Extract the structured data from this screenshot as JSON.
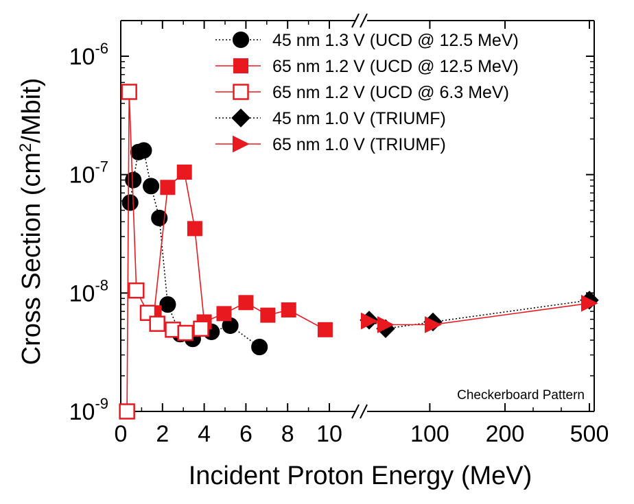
{
  "chart_data": {
    "type": "scatter",
    "xlabel": "Incident Proton Energy (MeV)",
    "ylabel": "Cross Section (cm2/Mbit)",
    "ylabel_parts": {
      "pre": "Cross Section (cm",
      "sup": "2",
      "post": "/Mbit)"
    },
    "y_scale": "log",
    "ylim": [
      1e-09,
      2e-06
    ],
    "y_ticks": [
      {
        "value": 1e-06,
        "base": "10",
        "exp": "-6"
      },
      {
        "value": 1e-07,
        "base": "10",
        "exp": "-7"
      },
      {
        "value": 1e-08,
        "base": "10",
        "exp": "-8"
      },
      {
        "value": 1e-09,
        "base": "10",
        "exp": "-9"
      }
    ],
    "x_axis_broken": true,
    "x_segments": [
      {
        "range": [
          0,
          11.5
        ],
        "scale": "linear"
      },
      {
        "range": [
          11.5,
          550
        ],
        "scale": "nonlinear"
      }
    ],
    "x_ticks": [
      {
        "value": 0,
        "label": "0"
      },
      {
        "value": 2,
        "label": "2"
      },
      {
        "value": 4,
        "label": "4"
      },
      {
        "value": 6,
        "label": "6"
      },
      {
        "value": 8,
        "label": "8"
      },
      {
        "value": 10,
        "label": "10"
      },
      {
        "value": 100,
        "label": "100"
      },
      {
        "value": 200,
        "label": "200"
      },
      {
        "value": 500,
        "label": "500"
      }
    ],
    "legend_position": "top-right",
    "annotation": "Checkerboard Pattern",
    "colors": {
      "black": "#000000",
      "red": "#e8191f"
    },
    "series": [
      {
        "name": "45 nm 1.3 V (UCD @ 12.5 MeV)",
        "marker": "circle",
        "fill": "filled",
        "color": "#000000",
        "line": "dotted",
        "x": [
          0.45,
          0.6,
          0.85,
          1.1,
          1.45,
          1.85,
          2.25,
          2.85,
          3.45,
          4.35,
          5.25,
          6.65
        ],
        "y": [
          5.8e-08,
          9e-08,
          1.55e-07,
          1.6e-07,
          8e-08,
          4.3e-08,
          8e-09,
          4.5e-09,
          4.1e-09,
          4.7e-09,
          5.3e-09,
          3.5e-09
        ]
      },
      {
        "name": "65 nm 1.2 V (UCD @ 12.5 MeV)",
        "marker": "square",
        "fill": "filled",
        "color": "#e8191f",
        "line": "solid",
        "x": [
          1.6,
          2.25,
          3.05,
          3.55,
          4.0,
          4.95,
          6.0,
          7.05,
          8.05,
          9.8
        ],
        "y": [
          6.8e-09,
          7.8e-08,
          1.05e-07,
          3.5e-08,
          5.7e-09,
          6.7e-09,
          8.3e-09,
          6.5e-09,
          7.2e-09,
          4.9e-09
        ]
      },
      {
        "name": "65 nm 1.2 V (UCD @  6.3 MeV)",
        "marker": "square",
        "fill": "open",
        "color": "#e8191f",
        "line": "solid",
        "x": [
          0.3,
          0.4,
          0.75,
          1.3,
          1.75,
          2.5,
          3.1,
          3.85
        ],
        "y": [
          1e-09,
          5e-07,
          1.05e-08,
          6.8e-09,
          5.5e-09,
          4.9e-09,
          4.6e-09,
          5e-09
        ]
      },
      {
        "name": "45 nm 1.0 V (TRIUMF)",
        "marker": "diamond",
        "fill": "filled",
        "color": "#000000",
        "line": "dotted",
        "x": [
          16,
          30,
          105,
          500
        ],
        "y": [
          5.9e-09,
          5e-09,
          5.7e-09,
          8.7e-09
        ]
      },
      {
        "name": "65 nm 1.0 V (TRIUMF)",
        "marker": "triangle-right",
        "fill": "filled",
        "color": "#e8191f",
        "line": "solid",
        "x": [
          16,
          30,
          105,
          500
        ],
        "y": [
          5.8e-09,
          5.4e-09,
          5.4e-09,
          8.2e-09
        ]
      }
    ]
  }
}
